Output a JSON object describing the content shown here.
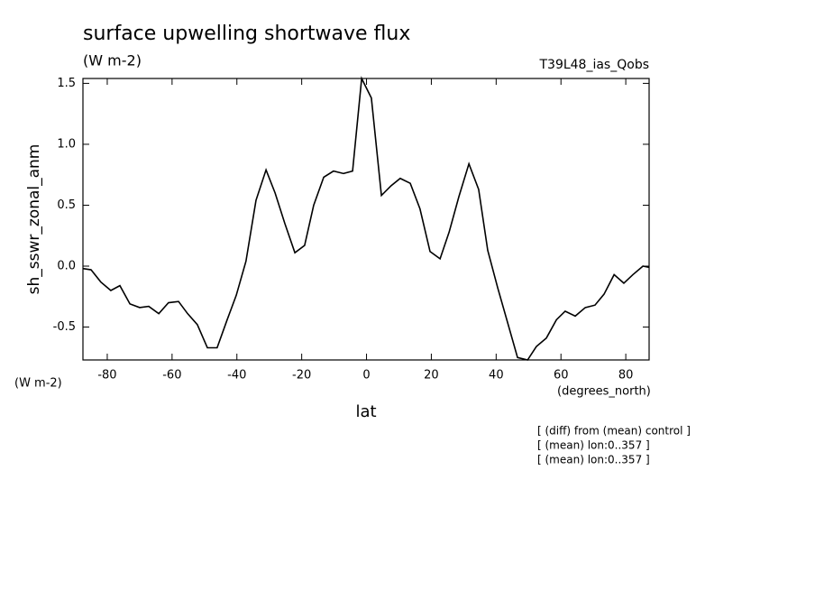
{
  "chart_data": {
    "type": "line",
    "title": "surface upwelling shortwave flux",
    "subtitle": "(W m-2)",
    "run_label": "T39L48_ias_Qobs",
    "y_label": "sh_sswr_zonal_anm",
    "y_units": "(W m-2)",
    "x_label": "lat",
    "x_units": "(degrees_north)",
    "notes": [
      "[ (diff) from (mean) control ]",
      "[ (mean) lon:0..357 ]",
      "[ (mean) lon:0..357 ]"
    ],
    "x": [
      -87.5,
      -85.0,
      -82.0,
      -78.9,
      -76.1,
      -73.0,
      -70.0,
      -67.2,
      -64.1,
      -61.1,
      -58.0,
      -55.2,
      -52.2,
      -49.1,
      -46.1,
      -43.0,
      -40.2,
      -37.2,
      -34.1,
      -31.0,
      -28.2,
      -25.2,
      -22.1,
      -19.1,
      -16.3,
      -13.2,
      -10.2,
      -7.1,
      -4.3,
      -1.5,
      1.5,
      4.6,
      7.6,
      10.4,
      13.5,
      16.5,
      19.6,
      22.7,
      25.5,
      28.5,
      31.6,
      34.6,
      37.4,
      40.5,
      43.5,
      46.6,
      49.7,
      52.4,
      55.5,
      58.6,
      61.3,
      64.4,
      67.5,
      70.5,
      73.3,
      76.4,
      79.4,
      82.2,
      85.3,
      87.2
    ],
    "series": [
      {
        "color": "#000000",
        "values": [
          -0.02,
          -0.03,
          -0.13,
          -0.2,
          -0.16,
          -0.31,
          -0.34,
          -0.33,
          -0.39,
          -0.3,
          -0.29,
          -0.39,
          -0.48,
          -0.67,
          -0.67,
          -0.44,
          -0.24,
          0.04,
          0.54,
          0.79,
          0.6,
          0.35,
          0.11,
          0.17,
          0.5,
          0.73,
          0.78,
          0.76,
          0.78,
          1.54,
          1.38,
          0.58,
          0.66,
          0.72,
          0.68,
          0.47,
          0.12,
          0.06,
          0.28,
          0.57,
          0.84,
          0.63,
          0.13,
          -0.18,
          -0.46,
          -0.75,
          -0.77,
          -0.66,
          -0.59,
          -0.44,
          -0.37,
          -0.41,
          -0.34,
          -0.32,
          -0.23,
          -0.07,
          -0.14,
          -0.07,
          0.0,
          -0.01
        ]
      }
    ],
    "xlim": [
      -87.5,
      87.2
    ],
    "ylim": [
      -0.77,
      1.54
    ],
    "xticks": [
      -80,
      -60,
      -40,
      -20,
      0,
      20,
      40,
      60,
      80
    ],
    "yticks": [
      {
        "value": -0.5,
        "label": "-0.5"
      },
      {
        "value": 0,
        "label": "0.0"
      },
      {
        "value": 0.5,
        "label": "0.5"
      },
      {
        "value": 1.0,
        "label": "1.0"
      },
      {
        "value": 1.5,
        "label": "1.5"
      }
    ],
    "grid": false
  }
}
